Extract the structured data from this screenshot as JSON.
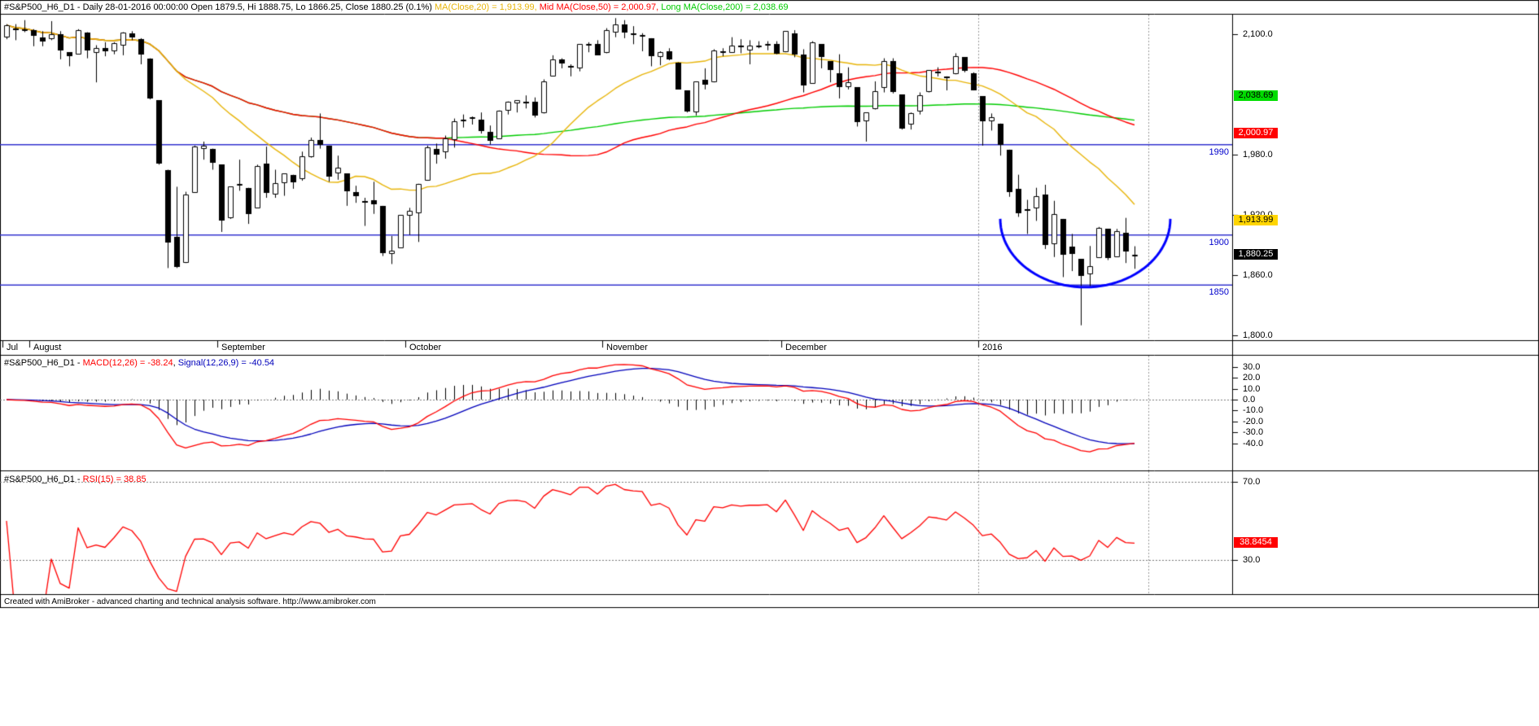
{
  "title_bar": {
    "symbol_info": "#S&P500_H6_D1 - Daily 28-01-2016 00:00:00 Open 1879.5, Hi 1888.75, Lo 1866.25, Close 1880.25 (0.1%) ",
    "ma20_label": "MA(Close,20) = 1,913.99,",
    "ma50_label": " Mid MA(Close,50) = 2,000.97,",
    "ma200_label": " Long MA(Close,200) = 2,038.69"
  },
  "colors": {
    "ma20": "#e8b50a",
    "ma50": "#ff0000",
    "ma200": "#00cc00",
    "hline": "#3535cf",
    "hline_label": "#0000cc",
    "macd": "#ff0000",
    "signal": "#0000bb",
    "rsi": "#ff0000",
    "candle": "#000000",
    "cup": "#0000ff",
    "grid": "#999999"
  },
  "price_panel": {
    "y_axis_ticks": [
      {
        "label": "2,100.0",
        "value": 2100
      },
      {
        "label": "1,980.0",
        "value": 1980
      },
      {
        "label": "1,920.0",
        "value": 1920
      },
      {
        "label": "1,860.0",
        "value": 1860
      },
      {
        "label": "1,800.0",
        "value": 1800
      }
    ],
    "hlines": [
      {
        "label": "1990",
        "value": 1990
      },
      {
        "label": "1900",
        "value": 1900
      },
      {
        "label": "1850",
        "value": 1850
      }
    ],
    "price_markers": [
      {
        "label": "2,038.69",
        "value": 2038.69,
        "bg": "#00dd00",
        "fg": "#000000"
      },
      {
        "label": "2,000.97",
        "value": 2000.97,
        "bg": "#ff0000",
        "fg": "#ffffff"
      },
      {
        "label": "1,913.99",
        "value": 1913.99,
        "bg": "#ffd500",
        "fg": "#000000"
      },
      {
        "label": "1,880.25",
        "value": 1880.25,
        "bg": "#000000",
        "fg": "#ffffff"
      }
    ],
    "months": [
      {
        "label": "Jul",
        "bar": 0
      },
      {
        "label": "August",
        "bar": 3
      },
      {
        "label": "September",
        "bar": 24
      },
      {
        "label": "October",
        "bar": 45
      },
      {
        "label": "November",
        "bar": 67
      },
      {
        "label": "December",
        "bar": 87
      },
      {
        "label": "2016",
        "bar": 109
      }
    ]
  },
  "macd_panel": {
    "title_prefix": "#S&P500_H6_D1 - ",
    "macd_label": "MACD(12,26) = -38.24",
    "separator": ", ",
    "signal_label": "Signal(12,26,9) = -40.54",
    "y_axis_ticks": [
      {
        "label": "30.0",
        "value": 30
      },
      {
        "label": "20.0",
        "value": 20
      },
      {
        "label": "10.0",
        "value": 10
      },
      {
        "label": "0.0",
        "value": 0
      },
      {
        "label": "-10.0",
        "value": -10
      },
      {
        "label": "-20.0",
        "value": -20
      },
      {
        "label": "-30.0",
        "value": -30
      },
      {
        "label": "-40.0",
        "value": -40
      }
    ]
  },
  "rsi_panel": {
    "title_prefix": "#S&P500_H6_D1 - ",
    "rsi_label": "RSI(15) = 38.85",
    "y_axis_ticks": [
      {
        "label": "70.0",
        "value": 70
      },
      {
        "label": "30.0",
        "value": 30
      }
    ],
    "value_marker": {
      "label": "38.8454",
      "value": 38.8454,
      "bg": "#ff0000",
      "fg": "#ffffff"
    }
  },
  "footer": {
    "text": "Created with AmiBroker - advanced charting and technical analysis software. http://www.amibroker.com"
  },
  "chart_data": {
    "type": "candlestick",
    "symbol": "#S&P500_H6_D1",
    "interval": "Daily",
    "last_bar": {
      "date": "28-01-2016",
      "open": 1879.5,
      "high": 1888.75,
      "low": 1866.25,
      "close": 1880.25,
      "change_pct": 0.1
    },
    "price_ylim": [
      1795,
      2120
    ],
    "price_axis_ticks": [
      2100,
      1980,
      1920,
      1860,
      1800
    ],
    "hlines": [
      1990,
      1900,
      1850
    ],
    "x_axis": {
      "tick_labels": [
        "Jul",
        "August",
        "September",
        "October",
        "November",
        "December",
        "2016"
      ],
      "tick_bars": [
        0,
        3,
        24,
        45,
        67,
        87,
        109
      ]
    },
    "grid_vline_bars": [
      108.5,
      127.5
    ],
    "overlays": [
      {
        "name": "MA(Close,20)",
        "type": "sma",
        "period": 20,
        "last_value": 1913.99
      },
      {
        "name": "Mid MA(Close,50)",
        "type": "sma",
        "period": 50,
        "last_value": 2000.97
      },
      {
        "name": "Long MA(Close,200)",
        "type": "sma",
        "period": 200,
        "last_value": 2038.69
      }
    ],
    "indicators": [
      {
        "type": "macd",
        "fast": 12,
        "slow": 26,
        "signal_period": 9,
        "macd_last": -38.24,
        "signal_last": -40.54,
        "axis_ticks": [
          30,
          20,
          10,
          0,
          -10,
          -20,
          -30,
          -40
        ],
        "ylim": [
          -62,
          36
        ]
      },
      {
        "type": "rsi",
        "period": 15,
        "last": 38.85,
        "marker_value": 38.8454,
        "axis_ticks": [
          70,
          30
        ],
        "ylim": [
          12,
          74
        ]
      }
    ],
    "annotation": {
      "type": "cup-arc",
      "from_bar": 111,
      "to_bar": 130,
      "rim_value": 1916,
      "bottom_value": 1848,
      "color": "#0000ff"
    },
    "ohlc": [
      [
        2097,
        2110,
        2095,
        2109
      ],
      [
        2106,
        2110,
        2094,
        2104
      ],
      [
        2105,
        2114,
        2102,
        2104
      ],
      [
        2104,
        2105,
        2088,
        2098
      ],
      [
        2097,
        2103,
        2088,
        2093
      ],
      [
        2095,
        2113,
        2094,
        2100
      ],
      [
        2100,
        2103,
        2075,
        2084
      ],
      [
        2082,
        2082,
        2068,
        2078
      ],
      [
        2080,
        2105,
        2080,
        2104
      ],
      [
        2102,
        2102,
        2076,
        2084
      ],
      [
        2081,
        2089,
        2052,
        2086
      ],
      [
        2086,
        2092,
        2078,
        2083
      ],
      [
        2083,
        2092,
        2080,
        2091
      ],
      [
        2089,
        2102,
        2079,
        2102
      ],
      [
        2101,
        2103,
        2094,
        2097
      ],
      [
        2095,
        2096,
        2070,
        2080
      ],
      [
        2076,
        2076,
        2035,
        2036
      ],
      [
        2034,
        2034,
        1970,
        1971
      ],
      [
        1965,
        1965,
        1867,
        1893
      ],
      [
        1898,
        1948,
        1867,
        1868
      ],
      [
        1872,
        1943,
        1872,
        1940
      ],
      [
        1942,
        1989,
        1942,
        1988
      ],
      [
        1986,
        1993,
        1975,
        1989
      ],
      [
        1986,
        1986,
        1965,
        1972
      ],
      [
        1970,
        1970,
        1903,
        1914
      ],
      [
        1916,
        1948,
        1916,
        1948
      ],
      [
        1950,
        1975,
        1944,
        1951
      ],
      [
        1947,
        1947,
        1911,
        1921
      ],
      [
        1927,
        1970,
        1927,
        1969
      ],
      [
        1971,
        1988,
        1937,
        1942
      ],
      [
        1941,
        1965,
        1937,
        1952
      ],
      [
        1951,
        1961,
        1939,
        1961
      ],
      [
        1960,
        1960,
        1946,
        1953
      ],
      [
        1955,
        1983,
        1954,
        1978
      ],
      [
        1978,
        1997,
        1977,
        1995
      ],
      [
        1995,
        2021,
        1986,
        1990
      ],
      [
        1989,
        1989,
        1953,
        1958
      ],
      [
        1961,
        1979,
        1955,
        1967
      ],
      [
        1961,
        1961,
        1929,
        1943
      ],
      [
        1943,
        1949,
        1932,
        1939
      ],
      [
        1934,
        1937,
        1909,
        1932
      ],
      [
        1935,
        1953,
        1921,
        1931
      ],
      [
        1929,
        1929,
        1879,
        1882
      ],
      [
        1881,
        1899,
        1871,
        1884
      ],
      [
        1887,
        1920,
        1887,
        1920
      ],
      [
        1919,
        1927,
        1900,
        1924
      ],
      [
        1922,
        1951,
        1893,
        1951
      ],
      [
        1954,
        1989,
        1954,
        1987
      ],
      [
        1986,
        1991,
        1971,
        1980
      ],
      [
        1982,
        1999,
        1976,
        1996
      ],
      [
        1994,
        2016,
        1987,
        2013
      ],
      [
        2013,
        2020,
        2007,
        2015
      ],
      [
        2015,
        2018,
        2010,
        2017
      ],
      [
        2015,
        2022,
        2001,
        2004
      ],
      [
        2003,
        2009,
        1990,
        1994
      ],
      [
        1996,
        2024,
        1996,
        2024
      ],
      [
        2024,
        2033,
        2020,
        2033
      ],
      [
        2031,
        2034,
        2022,
        2034
      ],
      [
        2033,
        2039,
        2026,
        2031
      ],
      [
        2033,
        2037,
        2017,
        2019
      ],
      [
        2021,
        2055,
        2021,
        2053
      ],
      [
        2058,
        2079,
        2058,
        2075
      ],
      [
        2075,
        2076,
        2066,
        2071
      ],
      [
        2068,
        2070,
        2058,
        2066
      ],
      [
        2066,
        2090,
        2063,
        2090
      ],
      [
        2088,
        2092,
        2082,
        2090
      ],
      [
        2090,
        2094,
        2079,
        2079
      ],
      [
        2081,
        2106,
        2081,
        2104
      ],
      [
        2102,
        2116,
        2097,
        2110
      ],
      [
        2110,
        2114,
        2096,
        2102
      ],
      [
        2101,
        2108,
        2090,
        2100
      ],
      [
        2098,
        2101,
        2083,
        2099
      ],
      [
        2096,
        2096,
        2068,
        2078
      ],
      [
        2077,
        2083,
        2069,
        2082
      ],
      [
        2083,
        2086,
        2074,
        2075
      ],
      [
        2072,
        2072,
        2045,
        2045
      ],
      [
        2044,
        2044,
        2022,
        2023
      ],
      [
        2022,
        2053,
        2019,
        2053
      ],
      [
        2055,
        2066,
        2045,
        2050
      ],
      [
        2052,
        2085,
        2052,
        2084
      ],
      [
        2083,
        2086,
        2078,
        2082
      ],
      [
        2082,
        2097,
        2082,
        2089
      ],
      [
        2089,
        2095,
        2081,
        2087
      ],
      [
        2084,
        2094,
        2070,
        2089
      ],
      [
        2089,
        2093,
        2086,
        2089
      ],
      [
        2088,
        2093,
        2084,
        2090
      ],
      [
        2090,
        2093,
        2080,
        2080
      ],
      [
        2082,
        2103,
        2082,
        2103
      ],
      [
        2101,
        2104,
        2077,
        2080
      ],
      [
        2080,
        2085,
        2042,
        2049
      ],
      [
        2051,
        2093,
        2051,
        2092
      ],
      [
        2090,
        2090,
        2066,
        2077
      ],
      [
        2073,
        2073,
        2052,
        2064
      ],
      [
        2061,
        2080,
        2036,
        2047
      ],
      [
        2047,
        2067,
        2045,
        2052
      ],
      [
        2047,
        2047,
        2008,
        2012
      ],
      [
        2013,
        2022,
        1993,
        2022
      ],
      [
        2025,
        2053,
        2025,
        2043
      ],
      [
        2046,
        2076,
        2042,
        2073
      ],
      [
        2073,
        2076,
        2041,
        2042
      ],
      [
        2040,
        2040,
        2005,
        2006
      ],
      [
        2010,
        2022,
        2005,
        2021
      ],
      [
        2023,
        2042,
        2020,
        2039
      ],
      [
        2042,
        2064,
        2042,
        2064
      ],
      [
        2063,
        2067,
        2058,
        2061
      ],
      [
        2058,
        2058,
        2044,
        2056
      ],
      [
        2060,
        2081,
        2060,
        2078
      ],
      [
        2077,
        2077,
        2062,
        2063
      ],
      [
        2061,
        2062,
        2044,
        2044
      ],
      [
        2038,
        2038,
        1989,
        2013
      ],
      [
        2013,
        2021,
        2004,
        2017
      ],
      [
        2011,
        2011,
        1979,
        1990
      ],
      [
        1985,
        1985,
        1938,
        1943
      ],
      [
        1946,
        1960,
        1918,
        1922
      ],
      [
        1926,
        1935,
        1901,
        1924
      ],
      [
        1927,
        1947,
        1914,
        1939
      ],
      [
        1940,
        1950,
        1886,
        1890
      ],
      [
        1891,
        1934,
        1878,
        1921
      ],
      [
        1916,
        1916,
        1858,
        1880
      ],
      [
        1888,
        1901,
        1864,
        1881
      ],
      [
        1876,
        1876,
        1810,
        1859
      ],
      [
        1861,
        1889,
        1848,
        1869
      ],
      [
        1877,
        1908,
        1877,
        1907
      ],
      [
        1906,
        1906,
        1875,
        1877
      ],
      [
        1878,
        1906,
        1878,
        1904
      ],
      [
        1902,
        1917,
        1872,
        1883
      ],
      [
        1879.5,
        1888.75,
        1866.25,
        1880.25
      ]
    ]
  }
}
